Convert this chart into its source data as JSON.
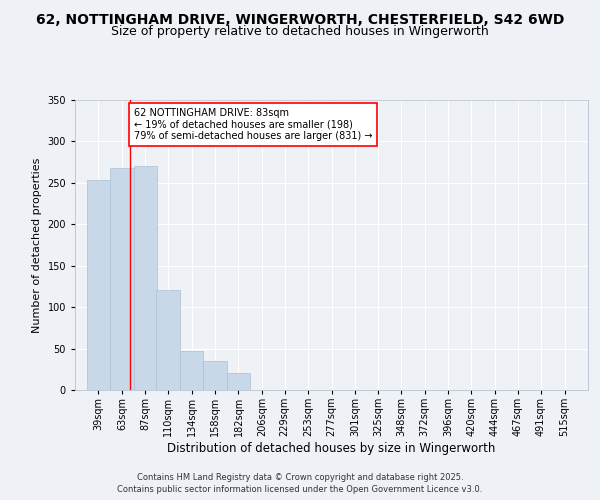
{
  "title_line1": "62, NOTTINGHAM DRIVE, WINGERWORTH, CHESTERFIELD, S42 6WD",
  "title_line2": "Size of property relative to detached houses in Wingerworth",
  "xlabel": "Distribution of detached houses by size in Wingerworth",
  "ylabel": "Number of detached properties",
  "categories": [
    "39sqm",
    "63sqm",
    "87sqm",
    "110sqm",
    "134sqm",
    "158sqm",
    "182sqm",
    "206sqm",
    "229sqm",
    "253sqm",
    "277sqm",
    "301sqm",
    "325sqm",
    "348sqm",
    "372sqm",
    "396sqm",
    "420sqm",
    "444sqm",
    "467sqm",
    "491sqm",
    "515sqm"
  ],
  "bar_bins": [
    39,
    63,
    87,
    110,
    134,
    158,
    182,
    206,
    229,
    253,
    277,
    301,
    325,
    348,
    372,
    396,
    420,
    444,
    467,
    491,
    515
  ],
  "bar_heights": [
    253,
    268,
    270,
    121,
    47,
    35,
    20,
    0,
    0,
    0,
    0,
    0,
    0,
    0,
    0,
    0,
    0,
    0,
    0,
    0,
    0
  ],
  "bar_color": "#c8d8e8",
  "bar_edge_color": "#aac0d4",
  "red_line_x": 83,
  "ylim": [
    0,
    350
  ],
  "yticks": [
    0,
    50,
    100,
    150,
    200,
    250,
    300,
    350
  ],
  "annotation_text": "62 NOTTINGHAM DRIVE: 83sqm\n← 19% of detached houses are smaller (198)\n79% of semi-detached houses are larger (831) →",
  "footer_line1": "Contains HM Land Registry data © Crown copyright and database right 2025.",
  "footer_line2": "Contains public sector information licensed under the Open Government Licence v3.0.",
  "background_color": "#eef2f7",
  "grid_color": "#ffffff",
  "title_fontsize": 10,
  "subtitle_fontsize": 9,
  "ylabel_fontsize": 8,
  "xlabel_fontsize": 8.5,
  "tick_fontsize": 7,
  "annotation_fontsize": 7,
  "footer_fontsize": 6
}
